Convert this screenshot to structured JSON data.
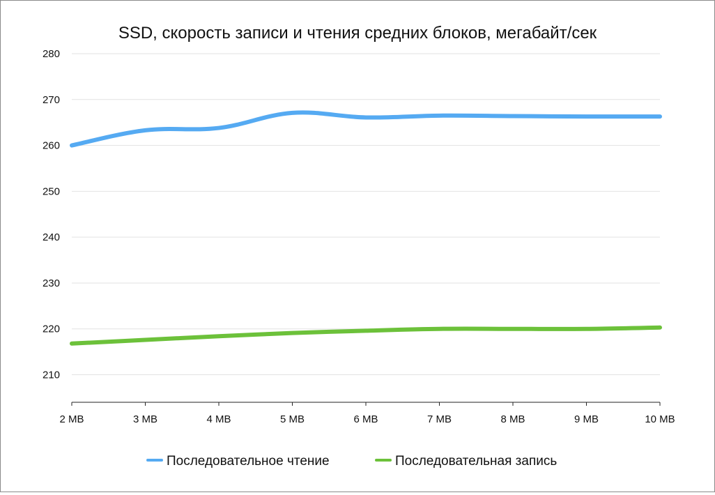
{
  "chart_data": {
    "type": "line",
    "title": "SSD, скорость записи и чтения средних блоков, мегабайт/сек",
    "xlabel": "",
    "ylabel": "",
    "categories": [
      "2 MB",
      "3 MB",
      "4 MB",
      "5 MB",
      "6 MB",
      "7 MB",
      "8 MB",
      "9 MB",
      "10 MB"
    ],
    "yticks": [
      210,
      220,
      230,
      240,
      250,
      260,
      270,
      280
    ],
    "ylim": [
      204,
      280
    ],
    "grid": true,
    "legend_position": "bottom-center",
    "series": [
      {
        "name": "Последовательное чтение",
        "color": "#55aaf2",
        "values": [
          260,
          263.3,
          263.8,
          267.1,
          266.1,
          266.5,
          266.4,
          266.3,
          266.3
        ]
      },
      {
        "name": "Последовательная запись",
        "color": "#6cc13a",
        "values": [
          216.8,
          217.6,
          218.4,
          219.1,
          219.6,
          220,
          220,
          220,
          220.3
        ]
      }
    ]
  }
}
